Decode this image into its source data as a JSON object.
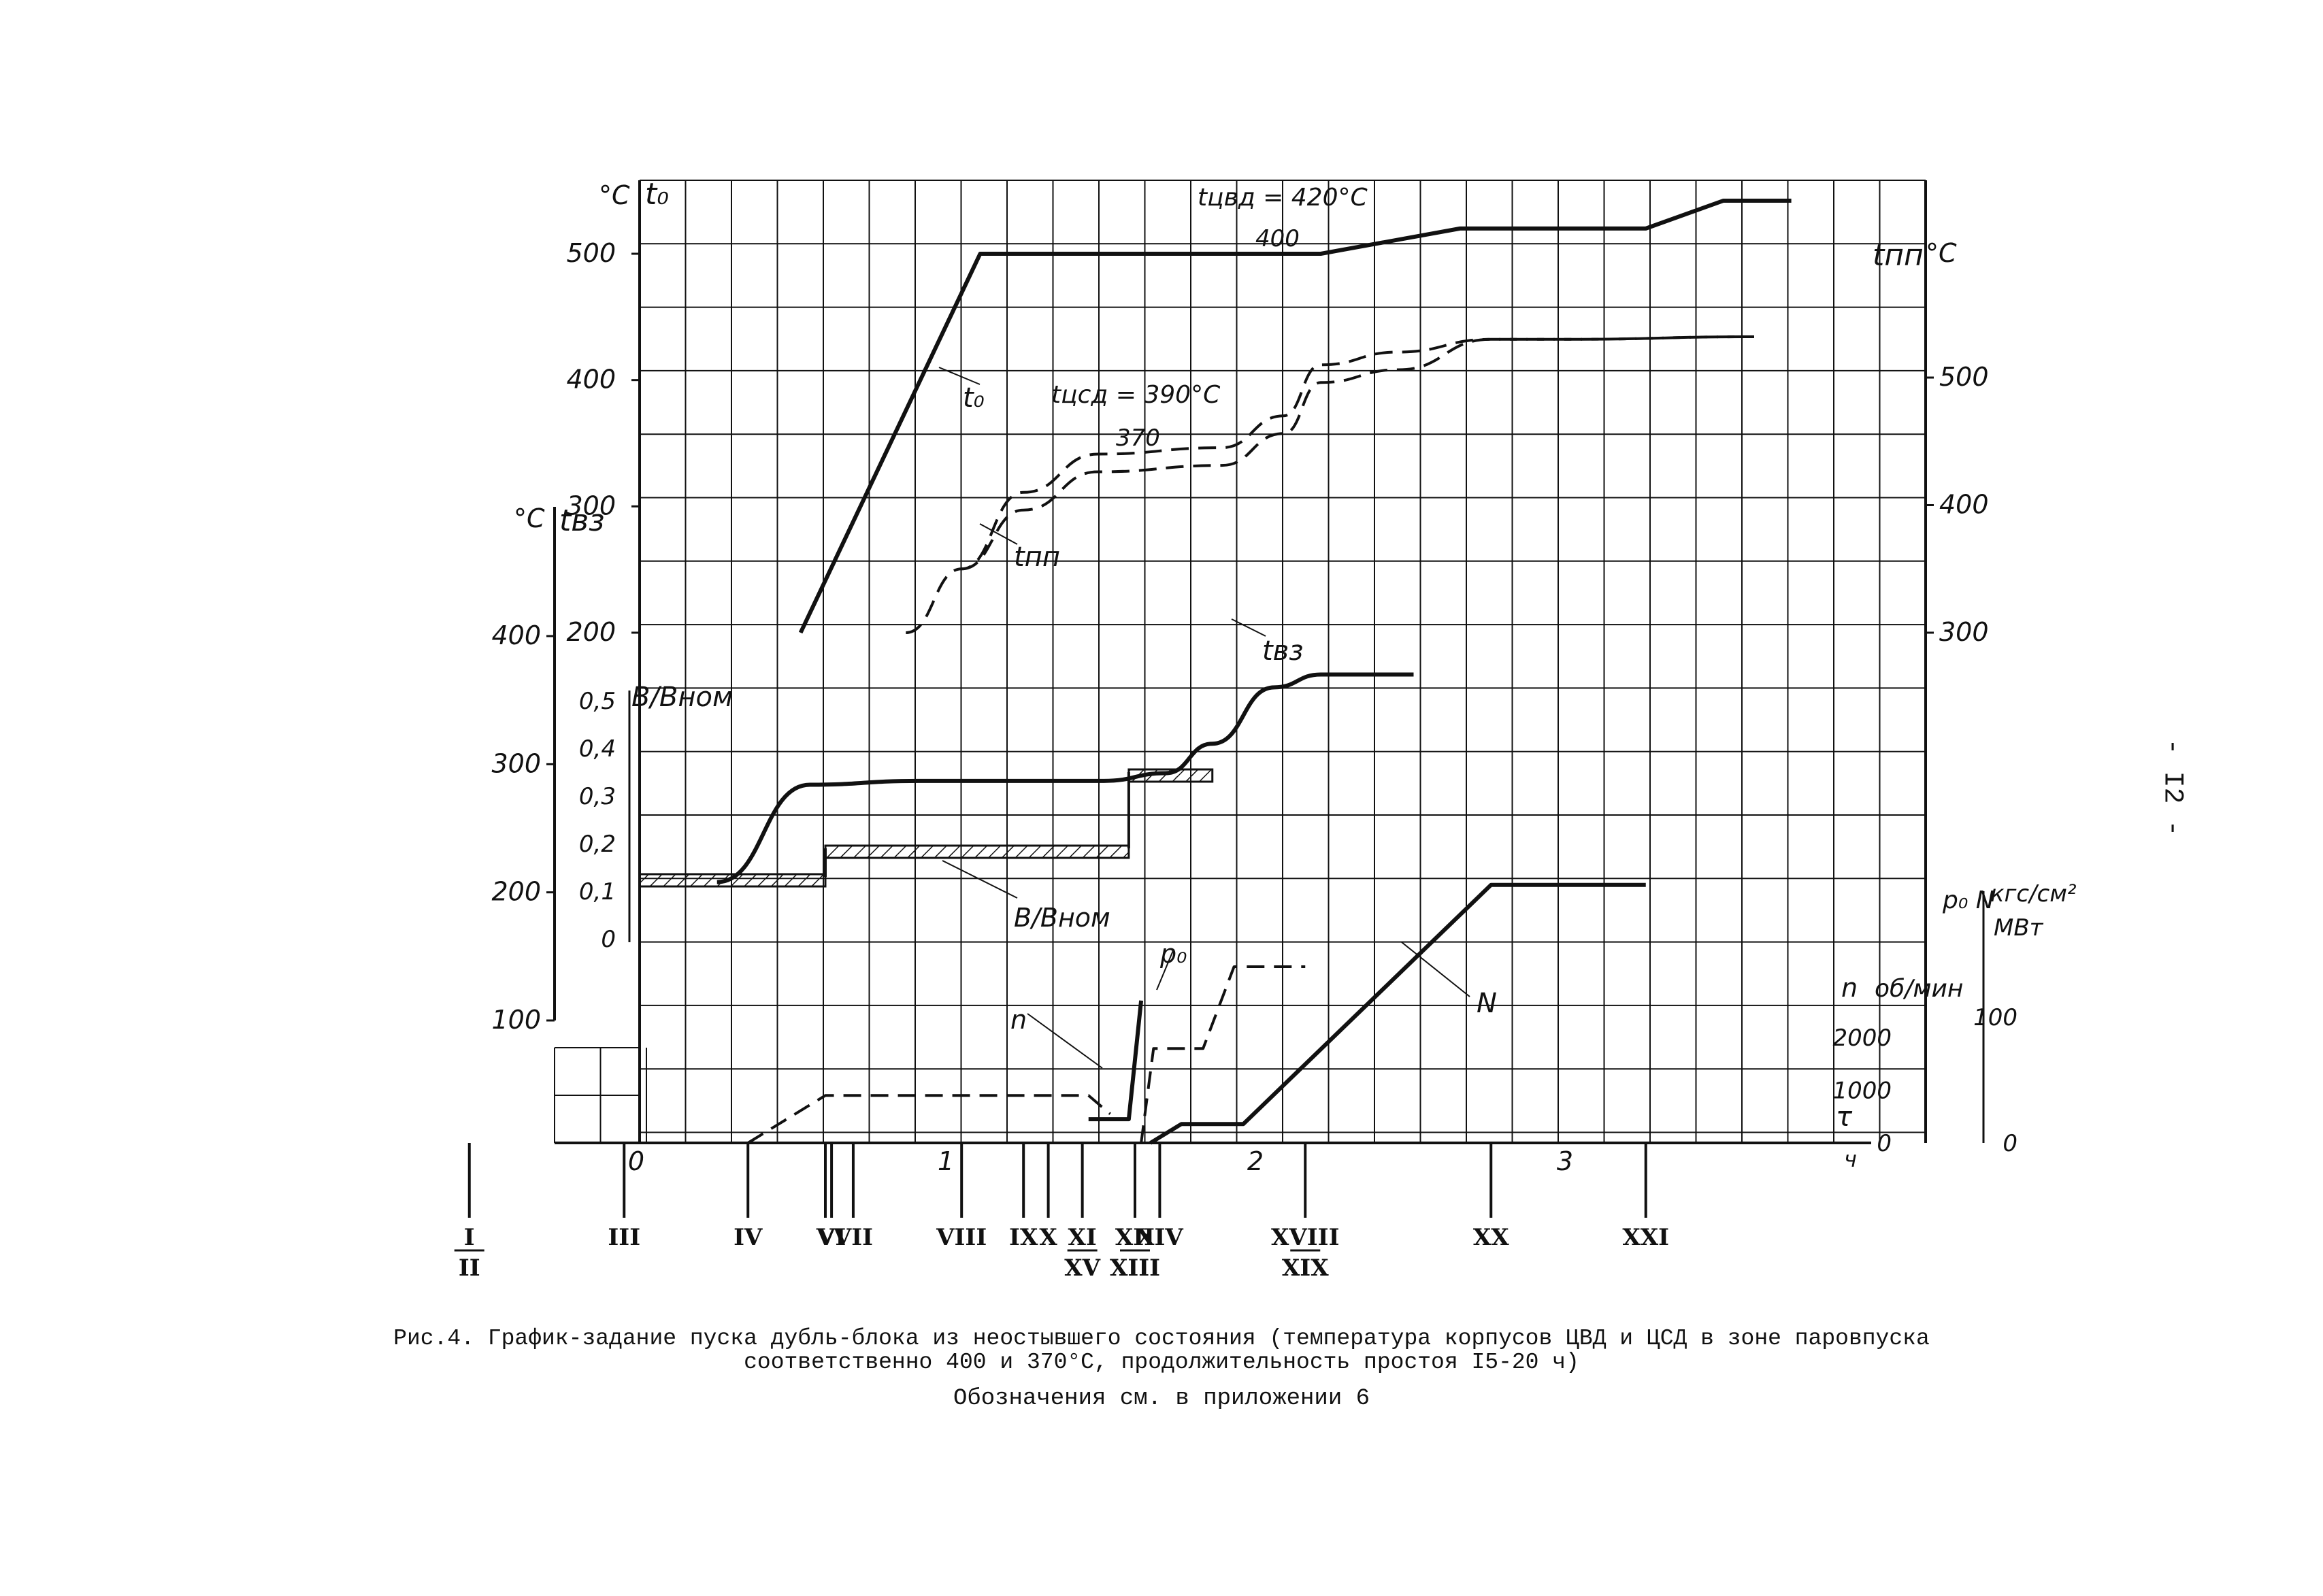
{
  "page_number": "- I2 -",
  "caption": {
    "line1": "Рис.4. График-задание пуска дубль-блока из неостывшего состояния (температура корпусов ЦВД и ЦСД в зоне паровпуска",
    "line2": "соответственно 400 и 370°С, продолжительность простоя I5-20 ч)",
    "line3": "Обозначения см. в приложении 6"
  },
  "chart_data": {
    "type": "line",
    "axes": {
      "t0": {
        "unit": "°С",
        "label": "t₀",
        "ticks": [
          "200",
          "300",
          "400",
          "500"
        ],
        "range": [
          200,
          560
        ]
      },
      "tpp": {
        "unit": "°С",
        "label": "tпп",
        "ticks": [
          "300",
          "400",
          "500"
        ],
        "range": [
          300,
          560
        ]
      },
      "tvz": {
        "unit": "°С",
        "label": "tвз",
        "ticks": [
          "100",
          "200",
          "300",
          "400"
        ],
        "range": [
          100,
          400
        ]
      },
      "B": {
        "label": "В/Вном",
        "ticks": [
          "0",
          "0,1",
          "0,2",
          "0,3",
          "0,4",
          "0,5"
        ],
        "range": [
          0,
          0.5
        ]
      },
      "n": {
        "unit": "об/мин",
        "label": "n",
        "ticks": [
          "0",
          "1000",
          "2000"
        ],
        "range": [
          0,
          3000
        ]
      },
      "p0N": {
        "unit_p": "кгс/см²",
        "unit_n": "МВт",
        "label": "p₀ N",
        "ticks": [
          "0",
          "100"
        ],
        "range": [
          0,
          200
        ]
      },
      "time": {
        "unit": "ч",
        "symbol": "τ",
        "ticks": [
          "0",
          "1",
          "2",
          "3"
        ],
        "range": [
          -0.55,
          3.9
        ]
      }
    },
    "series": [
      {
        "name": "t₀",
        "axis": "t0",
        "style": "solid",
        "x": [
          0.52,
          1.1,
          2.2,
          2.65,
          3.25,
          3.5,
          3.72
        ],
        "y": [
          200,
          500,
          500,
          520,
          520,
          542,
          542
        ]
      },
      {
        "name": "tпп",
        "axis": "tpp",
        "style": "dashed",
        "x": [
          0.86,
          1.04,
          1.24,
          1.48,
          1.88,
          2.08,
          2.2,
          2.45,
          2.75,
          3.0,
          3.6
        ],
        "y": [
          300,
          350,
          410,
          440,
          445,
          470,
          510,
          520,
          530,
          530,
          532
        ]
      },
      {
        "name": "tвз",
        "axis": "tvz",
        "style": "solid",
        "x": [
          0.25,
          0.55,
          0.9,
          1.5,
          1.7,
          1.85,
          2.05,
          2.2,
          2.5
        ],
        "y": [
          208,
          284,
          287,
          287,
          293,
          316,
          360,
          370,
          370
        ]
      },
      {
        "name": "В/Вном",
        "axis": "B",
        "style": "hatched-step",
        "x": [
          0.0,
          0.6,
          0.6,
          1.58,
          1.58,
          1.85
        ],
        "y": [
          0.13,
          0.13,
          0.19,
          0.19,
          0.35,
          0.35
        ]
      },
      {
        "name": "n",
        "axis": "n",
        "style": "dashed",
        "x": [
          0.35,
          0.6,
          1.45,
          1.52
        ],
        "y": [
          0,
          900,
          900,
          550
        ]
      },
      {
        "name": "n",
        "axis": "n",
        "style": "solid",
        "x": [
          1.45,
          1.52,
          1.58,
          1.62
        ],
        "y": [
          450,
          450,
          450,
          2700
        ]
      },
      {
        "name": "p₀",
        "axis": "p0N",
        "style": "dashed",
        "x": [
          1.62,
          1.66,
          1.82,
          1.92,
          2.15
        ],
        "y": [
          0,
          75,
          75,
          140,
          140
        ]
      },
      {
        "name": "N",
        "axis": "p0N",
        "style": "solid",
        "x": [
          1.65,
          1.75,
          1.95,
          2.75,
          3.25
        ],
        "y": [
          0,
          15,
          15,
          205,
          205
        ]
      }
    ],
    "annotations": [
      {
        "text": "tцвд = 420°С",
        "near": "t₀ upper branch"
      },
      {
        "text": "400",
        "near": "t₀ lower branch"
      },
      {
        "text": "tцсд = 390°С",
        "near": "tпп upper branch"
      },
      {
        "text": "370",
        "near": "tпп lower branch"
      }
    ],
    "events": [
      "I/II",
      "III",
      "IV",
      "V",
      "VI",
      "VII",
      "VIII",
      "IX",
      "X",
      "XI/XV",
      "XII/XIII",
      "XIV",
      "XVIII/XIX",
      "XX",
      "XXI"
    ]
  }
}
